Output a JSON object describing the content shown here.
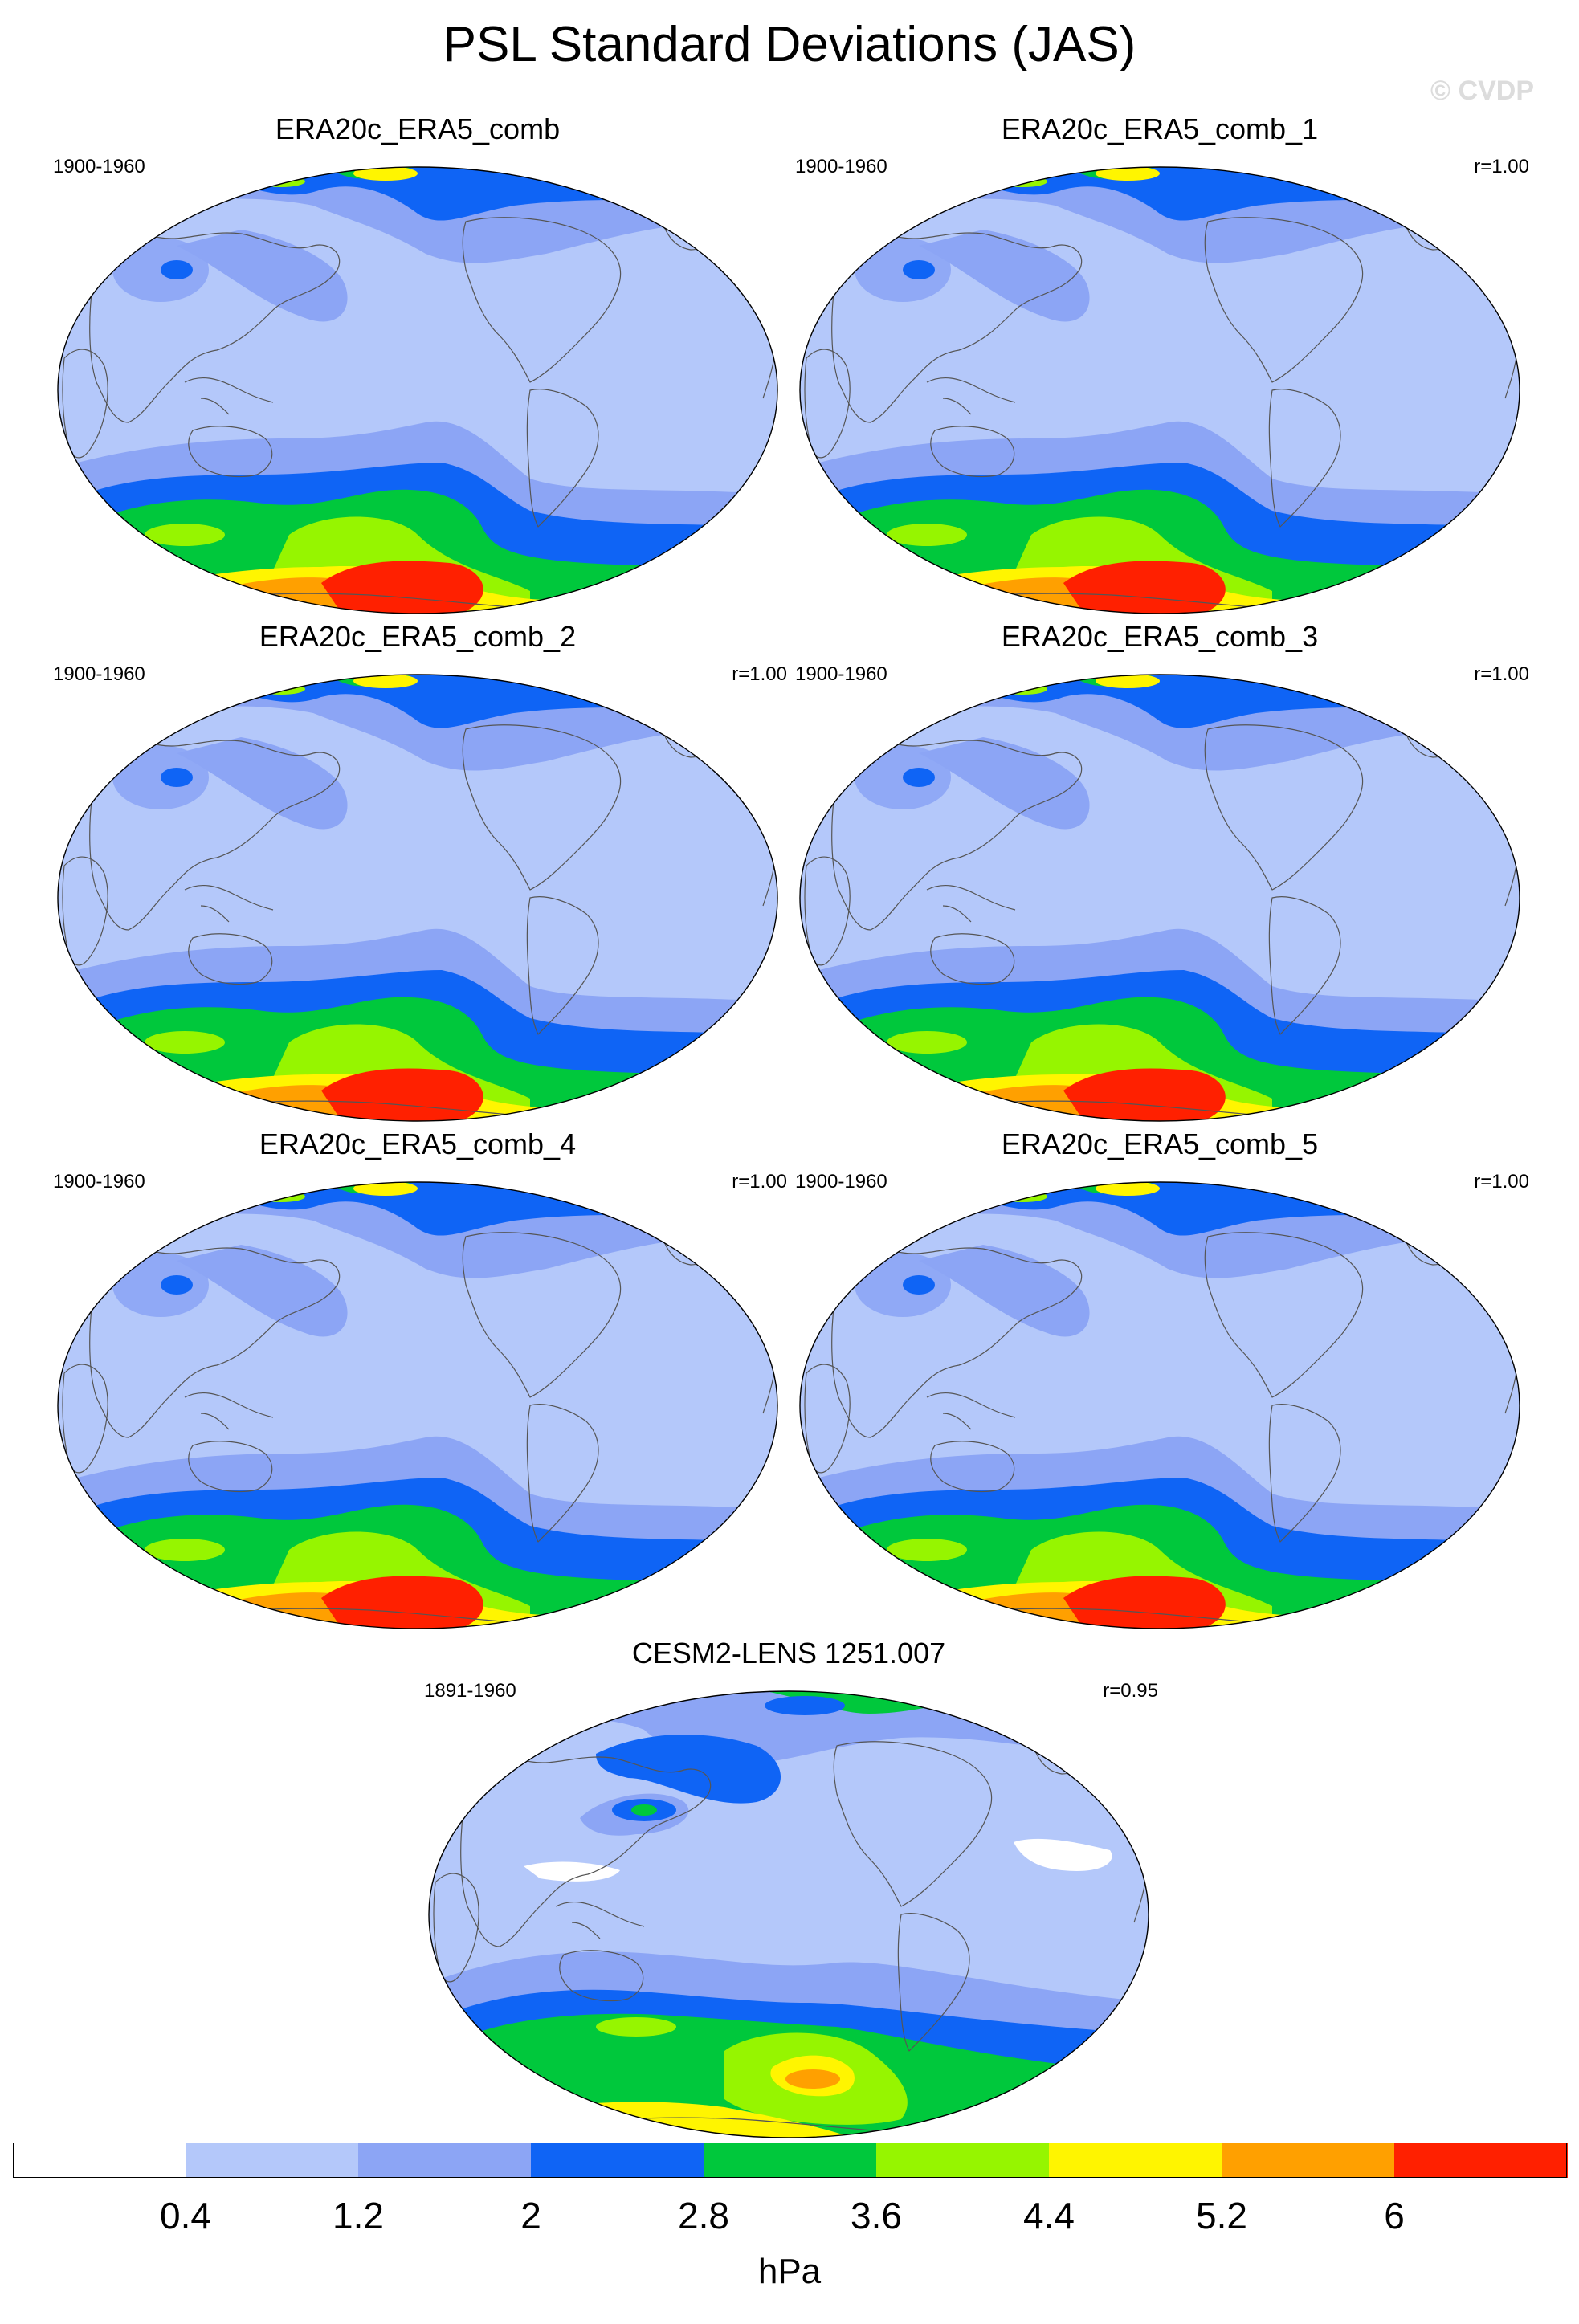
{
  "title": "PSL Standard Deviations (JAS)",
  "watermark": "© CVDP",
  "panels": [
    {
      "title": "ERA20c_ERA5_comb",
      "period": "1900-1960",
      "r": ""
    },
    {
      "title": "ERA20c_ERA5_comb_1",
      "period": "1900-1960",
      "r": "r=1.00"
    },
    {
      "title": "ERA20c_ERA5_comb_2",
      "period": "1900-1960",
      "r": "r=1.00"
    },
    {
      "title": "ERA20c_ERA5_comb_3",
      "period": "1900-1960",
      "r": "r=1.00"
    },
    {
      "title": "ERA20c_ERA5_comb_4",
      "period": "1900-1960",
      "r": "r=1.00"
    },
    {
      "title": "ERA20c_ERA5_comb_5",
      "period": "1900-1960",
      "r": "r=1.00"
    },
    {
      "title": "CESM2-LENS 1251.007",
      "period": "1891-1960",
      "r": "r=0.95"
    }
  ],
  "colorbar": {
    "labels": [
      "0.4",
      "1.2",
      "2",
      "2.8",
      "3.6",
      "4.4",
      "5.2",
      "6"
    ],
    "colors": [
      "#ffffff",
      "#b4c8fa",
      "#8ca5f5",
      "#0f64f5",
      "#00c83c",
      "#96f500",
      "#fff500",
      "#ffa000",
      "#ff2000"
    ],
    "units": "hPa"
  }
}
